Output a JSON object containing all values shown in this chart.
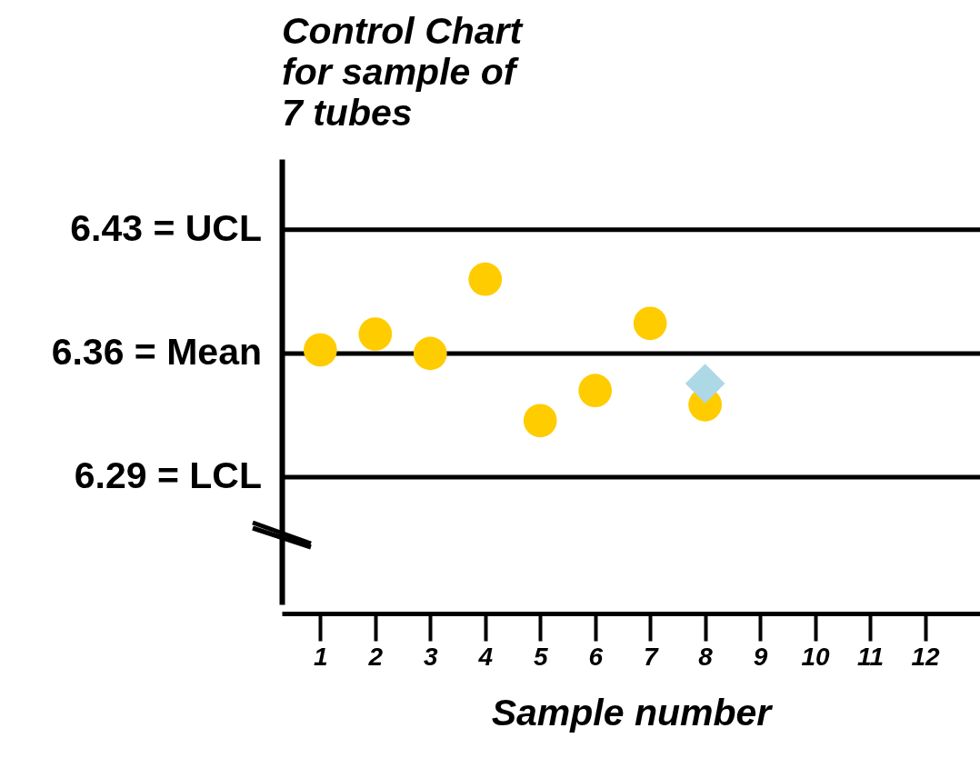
{
  "chart_data": {
    "type": "scatter",
    "title": "Control Chart for sample of 7 tubes",
    "xlabel": "Sample number",
    "x": [
      1,
      2,
      3,
      4,
      5,
      6,
      7,
      8
    ],
    "series": [
      {
        "color": "#ffcc00",
        "marker": "circle",
        "values": [
          6.362,
          6.371,
          6.36,
          6.402,
          6.322,
          6.339,
          6.377,
          6.331
        ]
      },
      {
        "color": "#add8e6",
        "marker": "diamond",
        "x": [
          8
        ],
        "values": [
          6.343
        ]
      }
    ],
    "xlim": [
      0.3,
      13
    ],
    "xticks": [
      1,
      2,
      3,
      4,
      5,
      6,
      7,
      8,
      9,
      10,
      11,
      12
    ],
    "ylim": [
      6.218,
      6.47
    ],
    "tick_labels": "x",
    "grid": false,
    "ref_lines": [
      {
        "axis": "y",
        "value": 6.43,
        "label": "6.43 = UCL",
        "color": "#000000"
      },
      {
        "axis": "y",
        "value": 6.36,
        "label": "6.36 = Mean",
        "color": "#000000"
      },
      {
        "axis": "y",
        "value": 6.29,
        "label": "6.29 = LCL",
        "color": "#000000"
      }
    ]
  }
}
